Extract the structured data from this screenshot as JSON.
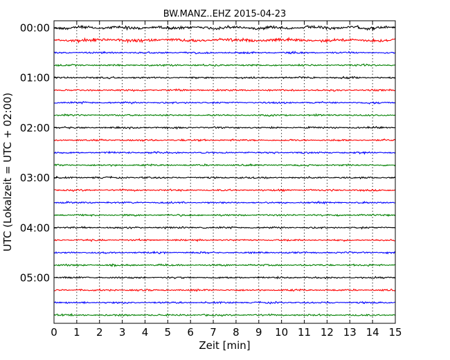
{
  "chart_data": {
    "type": "line",
    "title": "BW.MANZ..EHZ 2015-04-23",
    "xlabel": "Zeit  [min]",
    "ylabel": "UTC (Lokalzeit = UTC + 02:00)",
    "xlim": [
      0,
      15
    ],
    "x_ticks": [
      "0",
      "1",
      "2",
      "3",
      "4",
      "5",
      "6",
      "7",
      "8",
      "9",
      "10",
      "11",
      "12",
      "13",
      "14",
      "15"
    ],
    "y_tick_labels": [
      "00:00",
      "01:00",
      "02:00",
      "03:00",
      "04:00",
      "05:00"
    ],
    "trace_interval_minutes": 15,
    "trace_count": 24,
    "trace_colors": [
      "#000000",
      "#ff0000",
      "#0000ff",
      "#008000"
    ],
    "grid": "vertical dotted",
    "legend": "none"
  }
}
